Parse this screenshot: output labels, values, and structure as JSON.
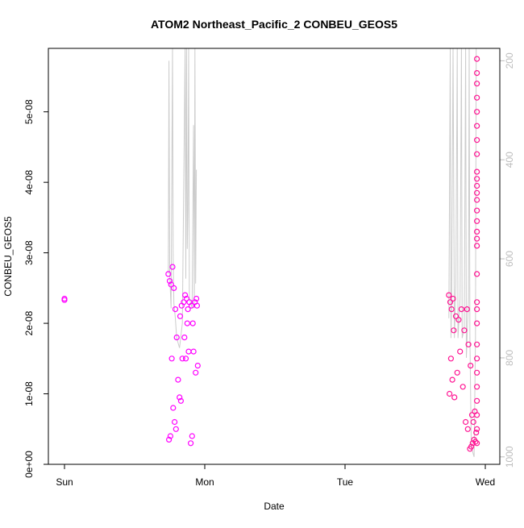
{
  "chart_data": {
    "type": "scatter",
    "title": "ATOM2 Northeast_Pacific_2 CONBEU_GEOS5",
    "xlabel": "Date",
    "ylabel": "CONBEU_GEOS5",
    "x_ticks": [
      "Sun",
      "Mon",
      "Tue",
      "Wed"
    ],
    "x_range_days": [
      0,
      3.12
    ],
    "y_ticks": [
      "0e+00",
      "1e-08",
      "2e-08",
      "3e-08",
      "4e-08",
      "5e-08"
    ],
    "y_tick_values": [
      0,
      1e-08,
      2e-08,
      3e-08,
      4e-08,
      5e-08
    ],
    "ylim": [
      0,
      5.9e-08
    ],
    "y2_ticks": [
      "200",
      "400",
      "600",
      "800",
      "1000"
    ],
    "y2_tick_values": [
      200,
      400,
      600,
      800,
      1000
    ],
    "y2_range": [
      1015,
      175
    ],
    "grid": false,
    "series": [
      {
        "color": "#ff00ff",
        "points": [
          [
            0.0,
            2.35e-08
          ],
          [
            0.0,
            2.33e-08
          ],
          [
            0.74,
            2.7e-08
          ],
          [
            0.745,
            3.5e-09
          ],
          [
            0.75,
            2.6e-08
          ],
          [
            0.755,
            4e-09
          ],
          [
            0.76,
            2.55e-08
          ],
          [
            0.765,
            1.5e-08
          ],
          [
            0.77,
            2.8e-08
          ],
          [
            0.775,
            8e-09
          ],
          [
            0.78,
            2.5e-08
          ],
          [
            0.785,
            6e-09
          ],
          [
            0.79,
            2.2e-08
          ],
          [
            0.795,
            5e-09
          ],
          [
            0.8,
            1.8e-08
          ],
          [
            0.81,
            1.2e-08
          ],
          [
            0.82,
            9.5e-09
          ],
          [
            0.825,
            2.1e-08
          ],
          [
            0.83,
            9e-09
          ],
          [
            0.835,
            2.25e-08
          ],
          [
            0.84,
            1.5e-08
          ],
          [
            0.85,
            2.3e-08
          ],
          [
            0.855,
            1.8e-08
          ],
          [
            0.86,
            2.4e-08
          ],
          [
            0.865,
            1.5e-08
          ],
          [
            0.87,
            2.35e-08
          ],
          [
            0.875,
            2e-08
          ],
          [
            0.88,
            2.2e-08
          ],
          [
            0.885,
            1.6e-08
          ],
          [
            0.89,
            2.3e-08
          ],
          [
            0.9,
            3e-09
          ],
          [
            0.905,
            2.25e-08
          ],
          [
            0.91,
            4e-09
          ],
          [
            0.915,
            2e-08
          ],
          [
            0.92,
            1.6e-08
          ],
          [
            0.93,
            2.3e-08
          ],
          [
            0.935,
            1.3e-08
          ],
          [
            0.94,
            2.35e-08
          ],
          [
            0.945,
            2.25e-08
          ],
          [
            0.95,
            1.4e-08
          ]
        ]
      },
      {
        "color": "#ff1493",
        "points": [
          [
            2.74,
            2.4e-08
          ],
          [
            2.745,
            1e-08
          ],
          [
            2.75,
            2.3e-08
          ],
          [
            2.755,
            1.5e-08
          ],
          [
            2.76,
            2.2e-08
          ],
          [
            2.765,
            1.2e-08
          ],
          [
            2.77,
            2.35e-08
          ],
          [
            2.775,
            1.9e-08
          ],
          [
            2.78,
            9.5e-09
          ],
          [
            2.79,
            2.1e-08
          ],
          [
            2.8,
            1.3e-08
          ],
          [
            2.81,
            2.05e-08
          ],
          [
            2.82,
            1.6e-08
          ],
          [
            2.83,
            2.2e-08
          ],
          [
            2.84,
            1.1e-08
          ],
          [
            2.85,
            1.9e-08
          ],
          [
            2.86,
            6e-09
          ],
          [
            2.87,
            2.2e-08
          ],
          [
            2.875,
            5e-09
          ],
          [
            2.88,
            1.7e-08
          ],
          [
            2.89,
            2.2e-09
          ],
          [
            2.895,
            1.4e-08
          ],
          [
            2.9,
            2.5e-09
          ],
          [
            2.905,
            7e-09
          ],
          [
            2.91,
            3e-09
          ],
          [
            2.915,
            6e-09
          ],
          [
            2.92,
            3.5e-09
          ],
          [
            2.925,
            7.5e-09
          ],
          [
            2.93,
            3.2e-09
          ],
          [
            2.935,
            4.5e-09
          ],
          [
            2.94,
            5.75e-08
          ],
          [
            2.94,
            5.55e-08
          ],
          [
            2.94,
            5.4e-08
          ],
          [
            2.94,
            5.2e-08
          ],
          [
            2.94,
            5e-08
          ],
          [
            2.94,
            4.8e-08
          ],
          [
            2.94,
            4.6e-08
          ],
          [
            2.94,
            4.4e-08
          ],
          [
            2.94,
            4.15e-08
          ],
          [
            2.94,
            4.05e-08
          ],
          [
            2.94,
            3.95e-08
          ],
          [
            2.94,
            3.85e-08
          ],
          [
            2.94,
            3.75e-08
          ],
          [
            2.94,
            3.6e-08
          ],
          [
            2.94,
            3.45e-08
          ],
          [
            2.94,
            3.3e-08
          ],
          [
            2.94,
            3.2e-08
          ],
          [
            2.94,
            3.1e-08
          ],
          [
            2.94,
            2.7e-08
          ],
          [
            2.94,
            2.3e-08
          ],
          [
            2.94,
            2.2e-08
          ],
          [
            2.94,
            2e-08
          ],
          [
            2.94,
            1.7e-08
          ],
          [
            2.94,
            1.5e-08
          ],
          [
            2.94,
            1.3e-08
          ],
          [
            2.94,
            1.1e-08
          ],
          [
            2.94,
            9e-09
          ],
          [
            2.94,
            7e-09
          ],
          [
            2.94,
            5e-09
          ],
          [
            2.94,
            3e-09
          ]
        ]
      }
    ],
    "altitude_line": {
      "color": "#cccccc",
      "segments": [
        [
          [
            0.74,
            630
          ],
          [
            0.745,
            200
          ],
          [
            0.75,
            630
          ],
          [
            0.76,
            700
          ],
          [
            0.77,
            175
          ],
          [
            0.775,
            600
          ],
          [
            0.78,
            690
          ],
          [
            0.79,
            720
          ],
          [
            0.8,
            760
          ],
          [
            0.82,
            780
          ],
          [
            0.84,
            730
          ],
          [
            0.86,
            175
          ],
          [
            0.865,
            640
          ],
          [
            0.87,
            175
          ],
          [
            0.875,
            580
          ],
          [
            0.88,
            500
          ],
          [
            0.885,
            175
          ],
          [
            0.89,
            680
          ],
          [
            0.91,
            700
          ],
          [
            0.92,
            330
          ],
          [
            0.925,
            700
          ],
          [
            0.93,
            175
          ],
          [
            0.935,
            650
          ],
          [
            0.94,
            420
          ]
        ],
        [
          [
            2.74,
            720
          ],
          [
            2.75,
            175
          ],
          [
            2.755,
            760
          ],
          [
            2.76,
            690
          ],
          [
            2.77,
            175
          ],
          [
            2.78,
            760
          ],
          [
            2.79,
            650
          ],
          [
            2.8,
            175
          ],
          [
            2.805,
            760
          ],
          [
            2.82,
            680
          ],
          [
            2.83,
            175
          ],
          [
            2.835,
            760
          ],
          [
            2.85,
            740
          ],
          [
            2.86,
            175
          ],
          [
            2.865,
            800
          ],
          [
            2.88,
            680
          ],
          [
            2.885,
            175
          ],
          [
            2.89,
            760
          ],
          [
            2.9,
            980
          ],
          [
            2.92,
            1000
          ],
          [
            2.93,
            760
          ],
          [
            2.935,
            175
          ]
        ]
      ]
    }
  }
}
